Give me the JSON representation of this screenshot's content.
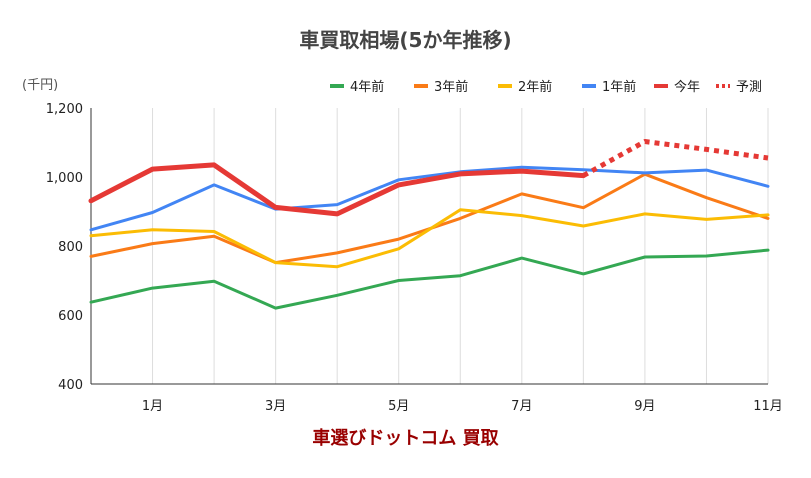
{
  "chart_data": {
    "type": "line",
    "title": "車買取相場(5か年推移)",
    "unit_label": "(千円)",
    "footer": "車選びドットコム 買取",
    "x": [
      0,
      1,
      2,
      3,
      4,
      5,
      6,
      7,
      8,
      9,
      10,
      11
    ],
    "x_ticks": [
      {
        "x": 1,
        "label": "1月"
      },
      {
        "x": 3,
        "label": "3月"
      },
      {
        "x": 5,
        "label": "5月"
      },
      {
        "x": 7,
        "label": "7月"
      },
      {
        "x": 9,
        "label": "9月"
      },
      {
        "x": 11,
        "label": "11月"
      }
    ],
    "xlim": [
      0,
      11
    ],
    "ylim": [
      400,
      1200
    ],
    "y_ticks": [
      400,
      600,
      800,
      1000,
      1200
    ],
    "y_tick_labels": [
      "400",
      "600",
      "800",
      "1,000",
      "1,200"
    ],
    "grid": "vertical",
    "legend": "top-right",
    "series": [
      {
        "name": "4年前",
        "color": "#34a853",
        "style": "solid",
        "width": 3,
        "points": [
          [
            0,
            637
          ],
          [
            1,
            678
          ],
          [
            2,
            698
          ],
          [
            3,
            620
          ],
          [
            4,
            657
          ],
          [
            5,
            700
          ],
          [
            6,
            714
          ],
          [
            7,
            765
          ],
          [
            8,
            719
          ],
          [
            9,
            768
          ],
          [
            10,
            771
          ],
          [
            11,
            788
          ]
        ]
      },
      {
        "name": "3年前",
        "color": "#fa7b17",
        "style": "solid",
        "width": 3,
        "points": [
          [
            0,
            770
          ],
          [
            1,
            807
          ],
          [
            2,
            828
          ],
          [
            3,
            752
          ],
          [
            4,
            780
          ],
          [
            5,
            820
          ],
          [
            6,
            880
          ],
          [
            7,
            951
          ],
          [
            8,
            911
          ],
          [
            9,
            1008
          ],
          [
            10,
            940
          ],
          [
            11,
            880
          ]
        ]
      },
      {
        "name": "2年前",
        "color": "#fbbc04",
        "style": "solid",
        "width": 3,
        "points": [
          [
            0,
            830
          ],
          [
            1,
            847
          ],
          [
            2,
            842
          ],
          [
            3,
            752
          ],
          [
            4,
            740
          ],
          [
            5,
            792
          ],
          [
            6,
            905
          ],
          [
            7,
            888
          ],
          [
            8,
            858
          ],
          [
            9,
            893
          ],
          [
            10,
            877
          ],
          [
            11,
            890
          ]
        ]
      },
      {
        "name": "1年前",
        "color": "#4285f4",
        "style": "solid",
        "width": 3,
        "points": [
          [
            0,
            847
          ],
          [
            1,
            897
          ],
          [
            2,
            977
          ],
          [
            3,
            907
          ],
          [
            4,
            920
          ],
          [
            5,
            992
          ],
          [
            6,
            1015
          ],
          [
            7,
            1028
          ],
          [
            8,
            1021
          ],
          [
            9,
            1012
          ],
          [
            10,
            1020
          ],
          [
            11,
            973
          ]
        ]
      },
      {
        "name": "今年",
        "color": "#e53935",
        "style": "solid",
        "width": 5,
        "points": [
          [
            0,
            931
          ],
          [
            1,
            1023
          ],
          [
            2,
            1035
          ],
          [
            3,
            912
          ],
          [
            4,
            893
          ],
          [
            5,
            977
          ],
          [
            6,
            1009
          ],
          [
            7,
            1017
          ],
          [
            8,
            1004
          ]
        ]
      },
      {
        "name": "予測",
        "color": "#e53935",
        "style": "dotted",
        "width": 5,
        "points": [
          [
            8,
            1004
          ],
          [
            9,
            1103
          ],
          [
            10,
            1080
          ],
          [
            11,
            1055
          ]
        ]
      }
    ]
  }
}
